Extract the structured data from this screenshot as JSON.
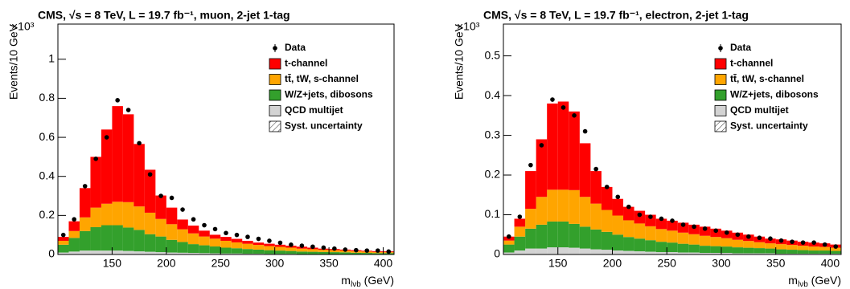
{
  "chart_data": [
    {
      "type": "histogram",
      "title": "CMS, √s = 8 TeV, L = 19.7 fb⁻¹, muon, 2-jet 1-tag",
      "multiplier": "×10³",
      "y_label": "Events/10 GeV",
      "x_label": {
        "main": "m",
        "sub": "lνb",
        "unit": "(GeV)"
      },
      "bins": [
        100,
        110,
        120,
        130,
        140,
        150,
        160,
        170,
        180,
        190,
        200,
        210,
        220,
        230,
        240,
        250,
        260,
        270,
        280,
        290,
        300,
        310,
        320,
        330,
        340,
        350,
        360,
        370,
        380,
        390,
        400,
        410
      ],
      "xlim": [
        100,
        410
      ],
      "xticks": [
        150,
        200,
        250,
        300,
        350,
        400
      ],
      "ylim": [
        0,
        1.18
      ],
      "yticks": [
        0,
        0.2,
        0.4,
        0.6,
        0.8,
        1
      ],
      "data": {
        "name": "Data",
        "color": "#000000",
        "values": [
          0.1,
          0.18,
          0.35,
          0.49,
          0.6,
          0.79,
          0.74,
          0.57,
          0.41,
          0.3,
          0.29,
          0.23,
          0.18,
          0.15,
          0.13,
          0.11,
          0.1,
          0.09,
          0.08,
          0.07,
          0.06,
          0.05,
          0.045,
          0.04,
          0.035,
          0.03,
          0.025,
          0.022,
          0.02,
          0.02,
          0.015
        ]
      },
      "series": [
        {
          "name": "t-channel",
          "color": "#ff0000",
          "values": [
            0.02,
            0.05,
            0.15,
            0.26,
            0.38,
            0.49,
            0.45,
            0.32,
            0.22,
            0.12,
            0.085,
            0.05,
            0.04,
            0.03,
            0.02,
            0.02,
            0.018,
            0.015,
            0.012,
            0.012,
            0.011,
            0.01,
            0.01,
            0.008,
            0.006,
            0.006,
            0.005,
            0.005,
            0.004,
            0.004,
            0.004
          ]
        },
        {
          "name": "tt̄, tW, s-channel",
          "color": "#ffa500",
          "values": [
            0.02,
            0.035,
            0.07,
            0.1,
            0.11,
            0.12,
            0.13,
            0.12,
            0.11,
            0.09,
            0.08,
            0.065,
            0.055,
            0.045,
            0.04,
            0.035,
            0.03,
            0.027,
            0.024,
            0.021,
            0.019,
            0.017,
            0.015,
            0.013,
            0.011,
            0.01,
            0.009,
            0.008,
            0.007,
            0.006,
            0.005
          ]
        },
        {
          "name": "W/Z+jets, dibosons",
          "color": "#33a02c",
          "values": [
            0.04,
            0.07,
            0.1,
            0.12,
            0.13,
            0.13,
            0.12,
            0.11,
            0.09,
            0.08,
            0.065,
            0.055,
            0.045,
            0.04,
            0.035,
            0.03,
            0.027,
            0.024,
            0.021,
            0.019,
            0.017,
            0.015,
            0.013,
            0.012,
            0.011,
            0.01,
            0.009,
            0.008,
            0.007,
            0.006,
            0.006
          ]
        },
        {
          "name": "QCD multijet",
          "color": "#d3d3d3",
          "values": [
            0.01,
            0.015,
            0.02,
            0.02,
            0.02,
            0.02,
            0.018,
            0.016,
            0.014,
            0.012,
            0.01,
            0.009,
            0.008,
            0.007,
            0.006,
            0.005,
            0.005,
            0.004,
            0.004,
            0.003,
            0.003,
            0.003,
            0.002,
            0.002,
            0.002,
            0.002,
            0.002,
            0.001,
            0.001,
            0.001,
            0.001
          ]
        }
      ],
      "uncertainty_label": "Syst. uncertainty"
    },
    {
      "type": "histogram",
      "title": "CMS, √s = 8 TeV, L = 19.7 fb⁻¹, electron, 2-jet 1-tag",
      "multiplier": "×10³",
      "y_label": "Events/10 GeV",
      "x_label": {
        "main": "m",
        "sub": "lνb",
        "unit": "(GeV)"
      },
      "bins": [
        100,
        110,
        120,
        130,
        140,
        150,
        160,
        170,
        180,
        190,
        200,
        210,
        220,
        230,
        240,
        250,
        260,
        270,
        280,
        290,
        300,
        310,
        320,
        330,
        340,
        350,
        360,
        370,
        380,
        390,
        400,
        410
      ],
      "xlim": [
        100,
        410
      ],
      "xticks": [
        150,
        200,
        250,
        300,
        350,
        400
      ],
      "ylim": [
        0,
        0.58
      ],
      "yticks": [
        0,
        0.1,
        0.2,
        0.3,
        0.4,
        0.5
      ],
      "data": {
        "name": "Data",
        "color": "#000000",
        "values": [
          0.045,
          0.095,
          0.225,
          0.275,
          0.39,
          0.37,
          0.35,
          0.31,
          0.215,
          0.17,
          0.145,
          0.12,
          0.1,
          0.095,
          0.09,
          0.085,
          0.075,
          0.07,
          0.065,
          0.06,
          0.055,
          0.05,
          0.045,
          0.042,
          0.04,
          0.035,
          0.032,
          0.03,
          0.03,
          0.025,
          0.02
        ]
      },
      "series": [
        {
          "name": "t-channel",
          "color": "#ff0000",
          "values": [
            0.01,
            0.02,
            0.095,
            0.145,
            0.217,
            0.222,
            0.198,
            0.135,
            0.082,
            0.058,
            0.042,
            0.034,
            0.032,
            0.029,
            0.026,
            0.025,
            0.025,
            0.024,
            0.023,
            0.021,
            0.019,
            0.018,
            0.016,
            0.014,
            0.012,
            0.012,
            0.011,
            0.01,
            0.01,
            0.009,
            0.008
          ]
        },
        {
          "name": "tt̄, tW, s-channel",
          "color": "#ffa500",
          "values": [
            0.01,
            0.025,
            0.05,
            0.07,
            0.08,
            0.08,
            0.085,
            0.075,
            0.065,
            0.055,
            0.048,
            0.042,
            0.038,
            0.035,
            0.032,
            0.03,
            0.028,
            0.026,
            0.025,
            0.023,
            0.021,
            0.019,
            0.017,
            0.015,
            0.013,
            0.013,
            0.012,
            0.011,
            0.01,
            0.009,
            0.008
          ]
        },
        {
          "name": "W/Z+jets, dibosons",
          "color": "#33a02c",
          "values": [
            0.02,
            0.035,
            0.05,
            0.06,
            0.065,
            0.065,
            0.06,
            0.055,
            0.05,
            0.045,
            0.04,
            0.035,
            0.032,
            0.029,
            0.026,
            0.024,
            0.022,
            0.02,
            0.018,
            0.017,
            0.016,
            0.015,
            0.014,
            0.013,
            0.012,
            0.011,
            0.01,
            0.009,
            0.008,
            0.008,
            0.007
          ]
        },
        {
          "name": "QCD multijet",
          "color": "#d3d3d3",
          "values": [
            0.005,
            0.01,
            0.015,
            0.015,
            0.018,
            0.018,
            0.017,
            0.015,
            0.013,
            0.012,
            0.01,
            0.009,
            0.008,
            0.007,
            0.006,
            0.006,
            0.005,
            0.005,
            0.004,
            0.004,
            0.004,
            0.003,
            0.003,
            0.003,
            0.003,
            0.002,
            0.002,
            0.002,
            0.002,
            0.002,
            0.002
          ]
        }
      ],
      "uncertainty_label": "Syst. uncertainty"
    }
  ]
}
